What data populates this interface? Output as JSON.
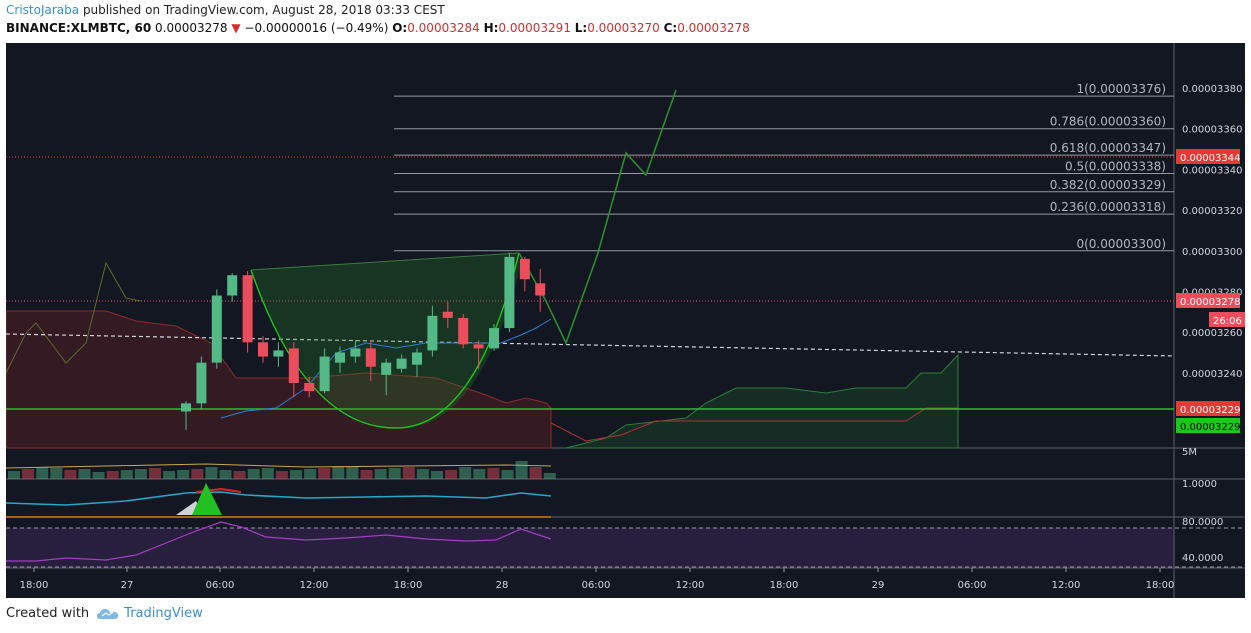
{
  "header": {
    "author": "CristoJaraba",
    "published_text": "published on TradingView.com, August 28, 2018 03:33 CEST",
    "symbol": "BINANCE:XLMBTC, 60",
    "last": "0.00003278",
    "change": "−0.00000016 (−0.49%)",
    "o_label": "O:",
    "o": "0.00003284",
    "h_label": "H:",
    "h": "0.00003291",
    "l_label": "L:",
    "l": "0.00003270",
    "c_label": "C:",
    "c": "0.00003278"
  },
  "footer": {
    "created": "Created with",
    "brand": "TradingView"
  },
  "colors": {
    "bg": "#131722",
    "up": "#53b987",
    "down": "#eb4d5c",
    "grid": "#363c4e",
    "fib": "#9598a1",
    "green_line": "#2dbd2d"
  },
  "chart_data": {
    "type": "candlestick",
    "price_axis": {
      "min": 3.2e-05,
      "max": 3.4e-05,
      "ticks": [
        "0.00003240",
        "0.00003260",
        "0.00003280",
        "0.00003300",
        "0.00003320",
        "0.00003340",
        "0.00003360",
        "0.00003380"
      ]
    },
    "time_axis": [
      "18:00",
      "27",
      "06:00",
      "12:00",
      "18:00",
      "28",
      "06:00",
      "12:00",
      "18:00",
      "29",
      "06:00",
      "12:00",
      "18:00"
    ],
    "price_tags": [
      {
        "value": "0.00003344",
        "bg": "#e53935",
        "fg": "#ffffff"
      },
      {
        "value": "0.00003278",
        "bg": "#eb4d5c",
        "fg": "#ffffff"
      },
      {
        "value": "26:06",
        "bg": "#eb4d5c",
        "fg": "#ffffff"
      },
      {
        "value": "0.00003229",
        "bg": "#e53935",
        "fg": "#ffffff"
      },
      {
        "value": "0.00003229",
        "bg": "#19c919",
        "fg": "#000000"
      }
    ],
    "fib_levels": [
      {
        "label": "1(0.00003376)",
        "value": 3.376e-05
      },
      {
        "label": "0.786(0.00003360)",
        "value": 3.36e-05
      },
      {
        "label": "0.618(0.00003347)",
        "value": 3.347e-05
      },
      {
        "label": "0.5(0.00003338)",
        "value": 3.338e-05
      },
      {
        "label": "0.382(0.00003329)",
        "value": 3.329e-05
      },
      {
        "label": "0.236(0.00003318)",
        "value": 3.318e-05
      },
      {
        "label": "0(0.00003300)",
        "value": 3.3e-05
      }
    ],
    "candles": [
      {
        "o": 3221,
        "h": 3226,
        "l": 3212,
        "c": 3225
      },
      {
        "o": 3225,
        "h": 3248,
        "l": 3222,
        "c": 3245
      },
      {
        "o": 3245,
        "h": 3281,
        "l": 3242,
        "c": 3278
      },
      {
        "o": 3278,
        "h": 3289,
        "l": 3275,
        "c": 3288
      },
      {
        "o": 3288,
        "h": 3290,
        "l": 3250,
        "c": 3255
      },
      {
        "o": 3255,
        "h": 3258,
        "l": 3245,
        "c": 3248
      },
      {
        "o": 3248,
        "h": 3255,
        "l": 3243,
        "c": 3251
      },
      {
        "o": 3252,
        "h": 3255,
        "l": 3228,
        "c": 3235
      },
      {
        "o": 3235,
        "h": 3238,
        "l": 3228,
        "c": 3231
      },
      {
        "o": 3231,
        "h": 3252,
        "l": 3230,
        "c": 3248
      },
      {
        "o": 3245,
        "h": 3253,
        "l": 3240,
        "c": 3250
      },
      {
        "o": 3248,
        "h": 3256,
        "l": 3245,
        "c": 3252
      },
      {
        "o": 3252,
        "h": 3256,
        "l": 3236,
        "c": 3243
      },
      {
        "o": 3239,
        "h": 3247,
        "l": 3229,
        "c": 3245
      },
      {
        "o": 3242,
        "h": 3249,
        "l": 3240,
        "c": 3247
      },
      {
        "o": 3244,
        "h": 3252,
        "l": 3238,
        "c": 3250
      },
      {
        "o": 3251,
        "h": 3273,
        "l": 3248,
        "c": 3268
      },
      {
        "o": 3270,
        "h": 3275,
        "l": 3262,
        "c": 3267
      },
      {
        "o": 3267,
        "h": 3269,
        "l": 3252,
        "c": 3254
      },
      {
        "o": 3254,
        "h": 3256,
        "l": 3242,
        "c": 3252
      },
      {
        "o": 3252,
        "h": 3264,
        "l": 3251,
        "c": 3262
      },
      {
        "o": 3262,
        "h": 3299,
        "l": 3260,
        "c": 3297
      },
      {
        "o": 3296,
        "h": 3297,
        "l": 3280,
        "c": 3286
      },
      {
        "o": 3284,
        "h": 3291,
        "l": 3270,
        "c": 3278
      }
    ],
    "volume_label": "5M",
    "indicator_ticks": [
      "1.0000",
      "80.0000",
      "40.0000"
    ]
  }
}
